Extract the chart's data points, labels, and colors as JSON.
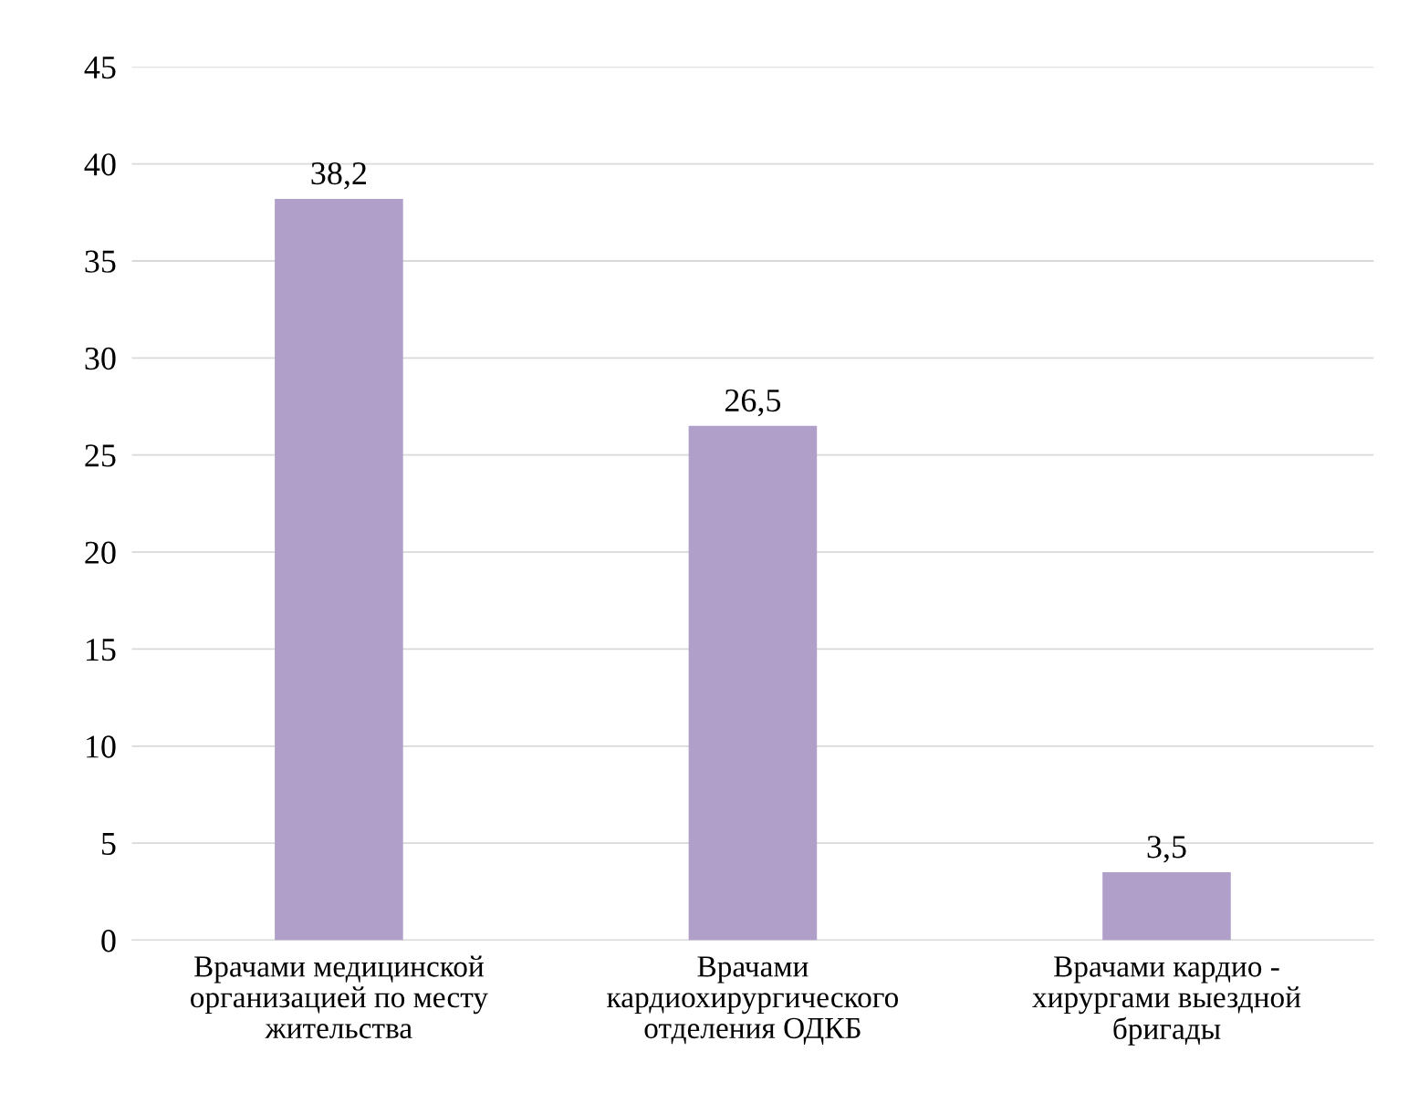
{
  "chart_data": {
    "type": "bar",
    "categories": [
      "Врачами медицинской\nорганизацией по месту\nжительства",
      "Врачами\nкардиохирургического\nотделения ОДКБ",
      "Врачами кардио -\nхирургами выездной\nбригады"
    ],
    "values": [
      38.2,
      26.5,
      3.5
    ],
    "value_labels": [
      "38,2",
      "26,5",
      "3,5"
    ],
    "color": "#b09fc8",
    "ylim": [
      0,
      45
    ],
    "yticks": [
      0,
      5,
      10,
      15,
      20,
      25,
      30,
      35,
      40,
      45
    ],
    "grid": "y",
    "legend": false
  }
}
